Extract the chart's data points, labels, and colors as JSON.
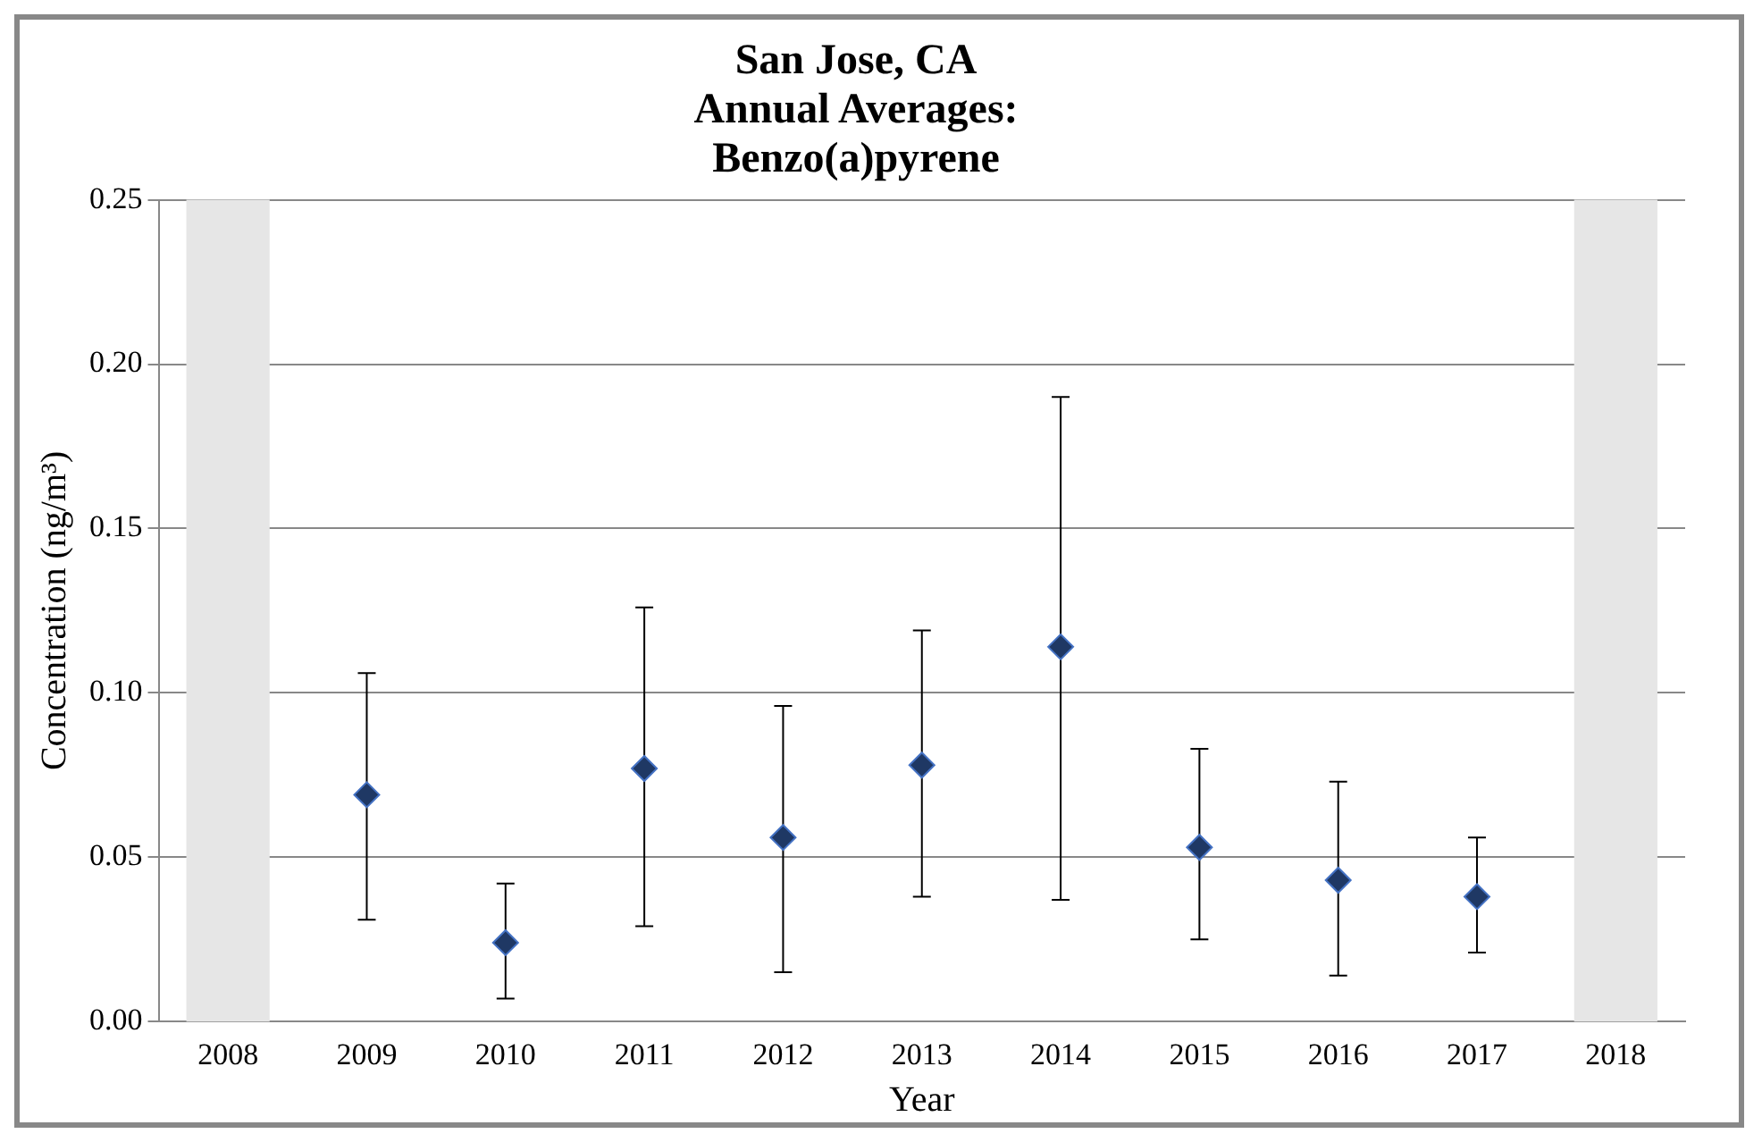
{
  "chart_data": {
    "type": "scatter",
    "title": "San Jose, CA\nAnnual Averages:\nBenzo(a)pyrene",
    "xlabel": "Year",
    "ylabel": "Concentration (ng/m³)",
    "categories": [
      "2008",
      "2009",
      "2010",
      "2011",
      "2012",
      "2013",
      "2014",
      "2015",
      "2016",
      "2017",
      "2018"
    ],
    "series": [
      {
        "color": "#1f3864",
        "values": [
          null,
          0.069,
          0.024,
          0.077,
          0.056,
          0.078,
          0.114,
          0.053,
          0.043,
          0.038,
          null
        ],
        "errors": [
          null,
          [
            0.031,
            0.106
          ],
          [
            0.007,
            0.042
          ],
          [
            0.029,
            0.126
          ],
          [
            0.015,
            0.096
          ],
          [
            0.038,
            0.119
          ],
          [
            0.037,
            0.19
          ],
          [
            0.025,
            0.083
          ],
          [
            0.014,
            0.073
          ],
          [
            0.021,
            0.056
          ],
          null
        ]
      }
    ],
    "ylim": [
      0,
      0.25
    ],
    "yticks": [
      {
        "value": 0,
        "label": "0.00"
      },
      {
        "value": 0.05,
        "label": "0.05"
      },
      {
        "value": 0.1,
        "label": "0.10"
      },
      {
        "value": 0.15,
        "label": "0.15"
      },
      {
        "value": 0.2,
        "label": "0.20"
      },
      {
        "value": 0.25,
        "label": "0.25"
      }
    ],
    "bands": [
      {
        "axis": "x",
        "from": "2008",
        "to": "2008",
        "color": "#e6e6e6"
      },
      {
        "axis": "x",
        "from": "2018",
        "to": "2018",
        "color": "#e6e6e6"
      }
    ],
    "grid": "y",
    "legend": false,
    "marker": "diamond"
  }
}
